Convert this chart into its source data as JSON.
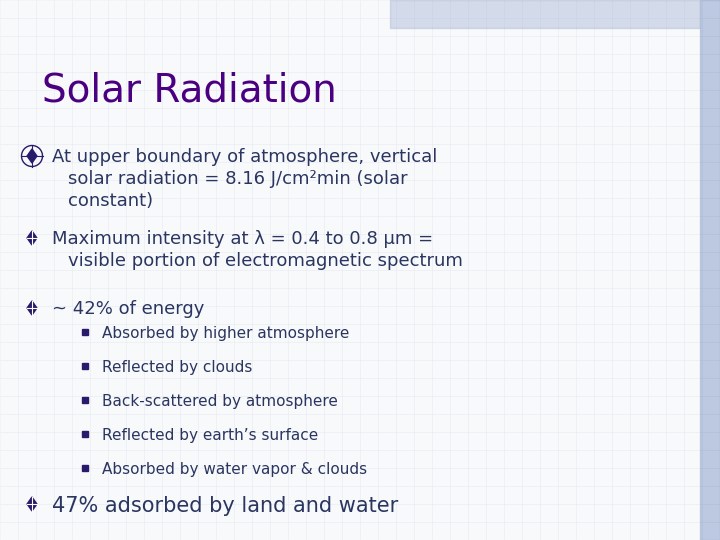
{
  "title": "Solar Radiation",
  "title_color": "#4a0080",
  "title_fontsize": 28,
  "bg_color": "#f0f2f8",
  "grid_color": "#c8cfe0",
  "text_color": "#2a3560",
  "bullet_color": "#2a1a6b",
  "sub_bullet_color": "#2a3560",
  "bullet1_line1": "At upper boundary of atmosphere, vertical",
  "bullet1_line2": "solar radiation = 8.16 J/cm²min (solar",
  "bullet1_line3": "constant)",
  "bullet2_line1": "Maximum intensity at λ = 0.4 to 0.8 μm =",
  "bullet2_line2": "visible portion of electromagnetic spectrum",
  "bullet3": "~ 42% of energy",
  "sub_bullets": [
    "Absorbed by higher atmosphere",
    "Reflected by clouds",
    "Back-scattered by atmosphere",
    "Reflected by earth’s surface",
    "Absorbed by water vapor & clouds"
  ],
  "bullet4": "47% adsorbed by land and water",
  "right_bar_color": "#9baed0",
  "top_bar_color": "#b0bcd8",
  "main_text_fontsize": 13,
  "sub_text_fontsize": 11,
  "bullet4_fontsize": 15
}
